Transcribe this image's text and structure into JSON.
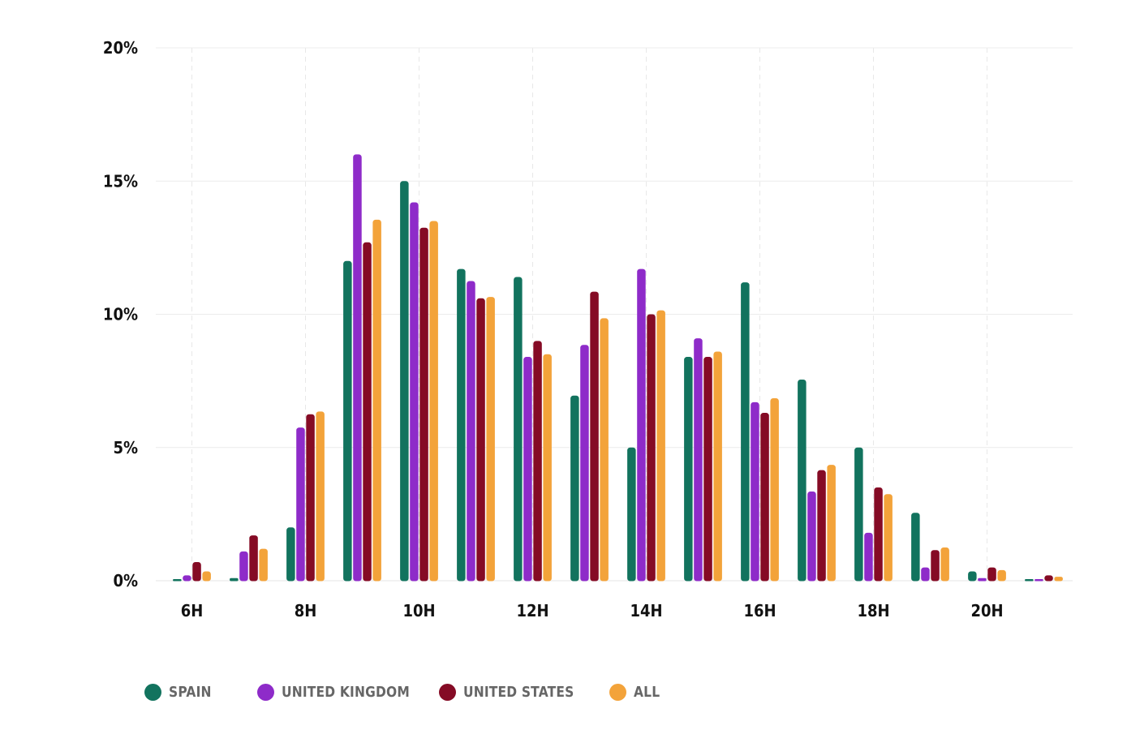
{
  "chart_data": {
    "type": "bar",
    "categories": [
      "6H",
      "7H",
      "8H",
      "9H",
      "10H",
      "11H",
      "12H",
      "13H",
      "14H",
      "15H",
      "16H",
      "17H",
      "18H",
      "19H",
      "20H",
      "21H"
    ],
    "x_tick_labels": [
      "6H",
      "",
      "8H",
      "",
      "10H",
      "",
      "12H",
      "",
      "14H",
      "",
      "16H",
      "",
      "18H",
      "",
      "20H",
      ""
    ],
    "y_ticks": [
      "0%",
      "5%",
      "10%",
      "15%",
      "20%"
    ],
    "ylim": [
      0,
      20
    ],
    "series": [
      {
        "name": "SPAIN",
        "color": "#12735e",
        "values": [
          0,
          0.1,
          2.0,
          12.0,
          15.0,
          11.7,
          11.4,
          6.95,
          5.0,
          8.4,
          11.2,
          7.55,
          5.0,
          2.55,
          0.35,
          0.05
        ]
      },
      {
        "name": "UNITED KINGDOM",
        "color": "#8e2bc9",
        "values": [
          0.2,
          1.1,
          5.75,
          16.0,
          14.2,
          11.25,
          8.4,
          8.85,
          11.7,
          9.1,
          6.7,
          3.35,
          1.8,
          0.5,
          0.1,
          0.05
        ]
      },
      {
        "name": "UNITED STATES",
        "color": "#850b25",
        "values": [
          0.7,
          1.7,
          6.25,
          12.7,
          13.25,
          10.6,
          9.0,
          10.85,
          10.0,
          8.4,
          6.3,
          4.15,
          3.5,
          1.15,
          0.5,
          0.2
        ]
      },
      {
        "name": "ALL",
        "color": "#f3a33a",
        "values": [
          0.35,
          1.2,
          6.35,
          13.55,
          13.5,
          10.65,
          8.5,
          9.85,
          10.15,
          8.6,
          6.85,
          4.35,
          3.25,
          1.25,
          0.4,
          0.15
        ]
      }
    ],
    "grid": true,
    "legend_position": "bottom-left",
    "title": "",
    "xlabel": "",
    "ylabel": ""
  }
}
